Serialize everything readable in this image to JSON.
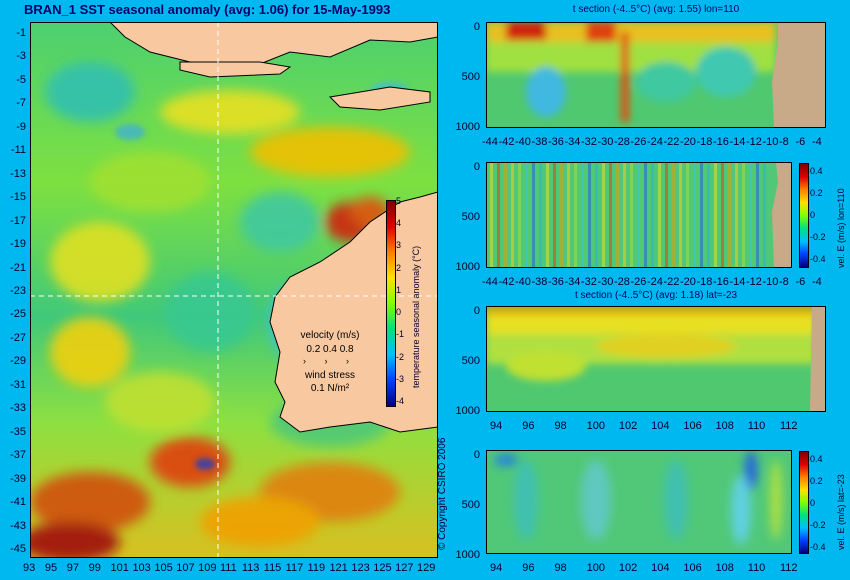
{
  "title": "BRAN_1 SST seasonal anomaly (avg: 1.06) for 15-May-1993",
  "map": {
    "lat_ticks": [
      "-1",
      "-3",
      "-5",
      "-7",
      "-9",
      "-11",
      "-13",
      "-15",
      "-17",
      "-19",
      "-21",
      "-23",
      "-25",
      "-27",
      "-29",
      "-31",
      "-33",
      "-35",
      "-37",
      "-39",
      "-41",
      "-43",
      "-45"
    ],
    "lon_ticks": [
      "93",
      "95",
      "97",
      "99",
      "101",
      "103",
      "105",
      "107",
      "109",
      "111",
      "113",
      "115",
      "117",
      "119",
      "121",
      "123",
      "125",
      "127",
      "129"
    ],
    "colorbar_label": "temperature seasonal anomaly (°C)",
    "colorbar_ticks": [
      "5",
      "4",
      "3",
      "2",
      "1",
      "0",
      "-1",
      "-2",
      "-3",
      "-4"
    ],
    "velocity_label": "velocity (m/s)",
    "velocity_values": "0.2 0.4 0.8",
    "wind_label": "wind stress",
    "wind_value": "0.1 N/m²",
    "copyright": "© Copyright CSIRO 2006"
  },
  "panels": {
    "p1": {
      "title": "t section (-4..5°C) (avg: 1.55) lon=110",
      "yticks": [
        "0",
        "500",
        "1000"
      ],
      "xticks": [
        "-44",
        "-42",
        "-40",
        "-38",
        "-36",
        "-34",
        "-32",
        "-30",
        "-28",
        "-26",
        "-24",
        "-22",
        "-20",
        "-18",
        "-16",
        "-14",
        "-12",
        "-10",
        "-8",
        "-6",
        "-4"
      ]
    },
    "p2": {
      "yticks": [
        "0",
        "500",
        "1000"
      ],
      "xticks": [
        "-44",
        "-42",
        "-40",
        "-38",
        "-36",
        "-34",
        "-32",
        "-30",
        "-28",
        "-26",
        "-24",
        "-22",
        "-20",
        "-18",
        "-16",
        "-14",
        "-12",
        "-10",
        "-8",
        "-6",
        "-4"
      ],
      "cb_label": "vel. E (m/s) lon=110",
      "cb_ticks": [
        "0.4",
        "0.2",
        "0",
        "-0.2",
        "-0.4"
      ]
    },
    "p3": {
      "title": "t section (-4..5°C) (avg: 1.18) lat=-23",
      "yticks": [
        "0",
        "500",
        "1000"
      ],
      "xticks": [
        "94",
        "96",
        "98",
        "100",
        "102",
        "104",
        "106",
        "108",
        "110",
        "112"
      ]
    },
    "p4": {
      "yticks": [
        "0",
        "500",
        "1000"
      ],
      "xticks": [
        "94",
        "96",
        "98",
        "100",
        "102",
        "104",
        "106",
        "108",
        "110",
        "112"
      ],
      "cb_label": "vel. E (m/s) lat=-23",
      "cb_ticks": [
        "0.4",
        "0.2",
        "0",
        "-0.2",
        "-0.4"
      ]
    }
  }
}
